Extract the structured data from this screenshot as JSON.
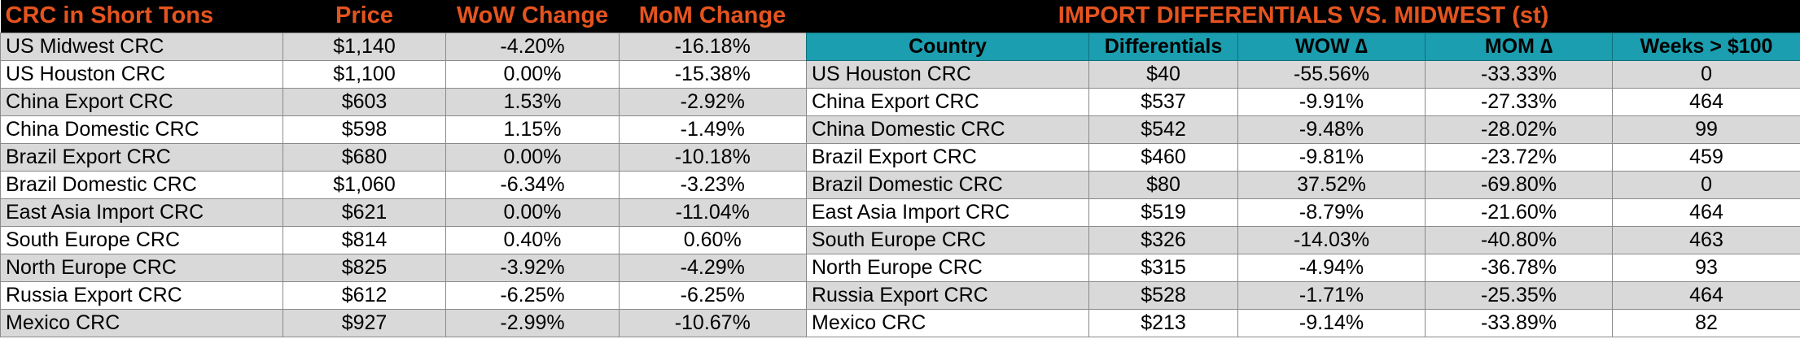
{
  "left": {
    "headers": [
      "CRC in Short Tons",
      "Price",
      "WoW Change",
      "MoM Change"
    ],
    "rows": [
      {
        "name": "US Midwest CRC",
        "price": "$1,140",
        "wow": "-4.20%",
        "mom": "-16.18%"
      },
      {
        "name": "US Houston CRC",
        "price": "$1,100",
        "wow": "0.00%",
        "mom": "-15.38%"
      },
      {
        "name": "China Export CRC",
        "price": "$603",
        "wow": "1.53%",
        "mom": "-2.92%"
      },
      {
        "name": "China Domestic CRC",
        "price": "$598",
        "wow": "1.15%",
        "mom": "-1.49%"
      },
      {
        "name": "Brazil Export CRC",
        "price": "$680",
        "wow": "0.00%",
        "mom": "-10.18%"
      },
      {
        "name": "Brazil Domestic CRC",
        "price": "$1,060",
        "wow": "-6.34%",
        "mom": "-3.23%"
      },
      {
        "name": "East Asia Import CRC",
        "price": "$621",
        "wow": "0.00%",
        "mom": "-11.04%"
      },
      {
        "name": "South Europe CRC",
        "price": "$814",
        "wow": "0.40%",
        "mom": "0.60%"
      },
      {
        "name": "North Europe CRC",
        "price": "$825",
        "wow": "-3.92%",
        "mom": "-4.29%"
      },
      {
        "name": "Russia Export CRC",
        "price": "$612",
        "wow": "-6.25%",
        "mom": "-6.25%"
      },
      {
        "name": "Mexico CRC",
        "price": "$927",
        "wow": "-2.99%",
        "mom": "-10.67%"
      }
    ]
  },
  "right": {
    "title": "IMPORT DIFFERENTIALS VS. MIDWEST (st)",
    "headers": [
      "Country",
      "Differentials",
      "WOW ∆",
      "MOM ∆",
      "Weeks > $100"
    ],
    "rows": [
      {
        "name": "US Houston CRC",
        "diff": "$40",
        "wow": "-55.56%",
        "mom": "-33.33%",
        "weeks": "0"
      },
      {
        "name": "China Export CRC",
        "diff": "$537",
        "wow": "-9.91%",
        "mom": "-27.33%",
        "weeks": "464"
      },
      {
        "name": "China Domestic CRC",
        "diff": "$542",
        "wow": "-9.48%",
        "mom": "-28.02%",
        "weeks": "99"
      },
      {
        "name": "Brazil Export CRC",
        "diff": "$460",
        "wow": "-9.81%",
        "mom": "-23.72%",
        "weeks": "459"
      },
      {
        "name": "Brazil Domestic CRC",
        "diff": "$80",
        "wow": "37.52%",
        "mom": "-69.80%",
        "weeks": "0"
      },
      {
        "name": "East Asia Import CRC",
        "diff": "$519",
        "wow": "-8.79%",
        "mom": "-21.60%",
        "weeks": "464"
      },
      {
        "name": "South Europe CRC",
        "diff": "$326",
        "wow": "-14.03%",
        "mom": "-40.80%",
        "weeks": "463"
      },
      {
        "name": "North Europe CRC",
        "diff": "$315",
        "wow": "-4.94%",
        "mom": "-36.78%",
        "weeks": "93"
      },
      {
        "name": "Russia Export CRC",
        "diff": "$528",
        "wow": "-1.71%",
        "mom": "-25.35%",
        "weeks": "464"
      },
      {
        "name": "Mexico CRC",
        "diff": "$213",
        "wow": "-9.14%",
        "mom": "-33.89%",
        "weeks": "82"
      }
    ]
  },
  "colors": {
    "header_bg": "#000000",
    "header_text": "#e5541f",
    "teal": "#1b9eaf",
    "row_gray": "#d9d9d9"
  }
}
